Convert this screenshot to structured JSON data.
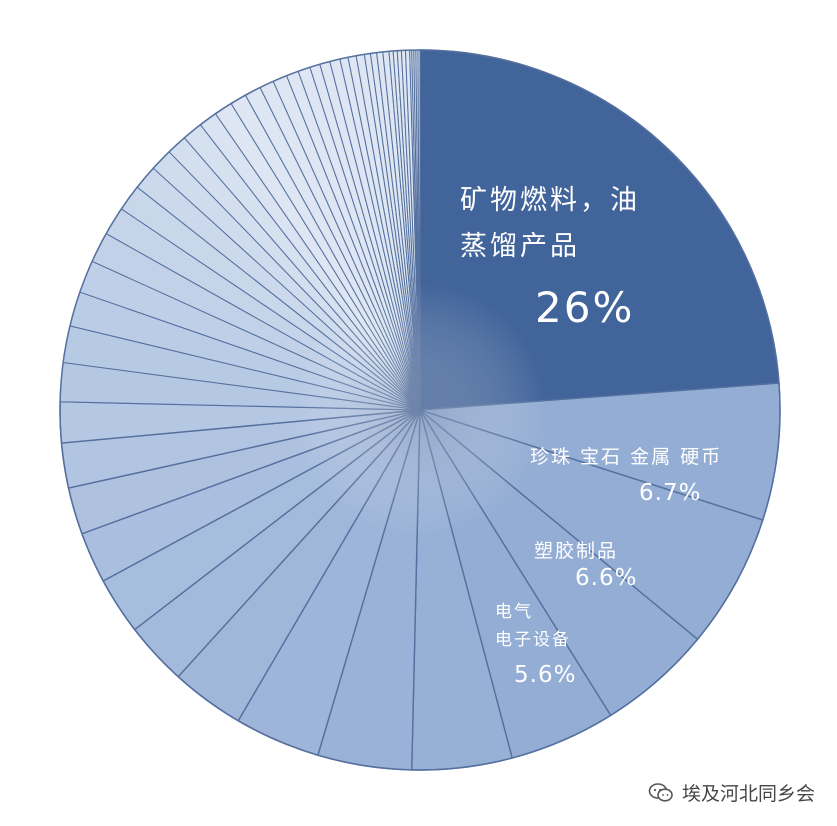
{
  "chart_data": {
    "type": "pie",
    "slices": [
      {
        "label": "矿物燃料，油蒸馏产品",
        "value": 26,
        "display": "26%"
      },
      {
        "label": "珍珠 宝石 金属 硬币",
        "value": 6.7,
        "display": "6.7%"
      },
      {
        "label": "塑胶制品",
        "value": 6.6,
        "display": "6.6%"
      },
      {
        "label": "电气电子设备",
        "value": 5.6,
        "display": "5.6%"
      },
      {
        "value": 5.2
      },
      {
        "value": 4.9
      },
      {
        "value": 4.6
      },
      {
        "value": 4.2
      },
      {
        "value": 3.6
      },
      {
        "value": 3.1
      },
      {
        "value": 2.8
      },
      {
        "value": 2.5
      },
      {
        "value": 2.3
      },
      {
        "value": 2.2
      },
      {
        "value": 2.0
      },
      {
        "value": 1.9
      },
      {
        "value": 1.8
      },
      {
        "value": 1.7
      },
      {
        "value": 1.6
      },
      {
        "value": 1.5
      },
      {
        "value": 1.4
      },
      {
        "value": 1.3
      },
      {
        "value": 1.2
      },
      {
        "value": 1.1
      },
      {
        "value": 1.0
      },
      {
        "value": 1.0
      },
      {
        "value": 0.9
      },
      {
        "value": 0.9
      },
      {
        "value": 0.8
      },
      {
        "value": 0.8
      },
      {
        "value": 0.7
      },
      {
        "value": 0.7
      },
      {
        "value": 0.6
      },
      {
        "value": 0.6
      },
      {
        "value": 0.5
      },
      {
        "value": 0.5
      },
      {
        "value": 0.5
      },
      {
        "value": 0.4
      },
      {
        "value": 0.4
      },
      {
        "value": 0.4
      },
      {
        "value": 0.3
      },
      {
        "value": 0.3
      },
      {
        "value": 0.3
      },
      {
        "value": 0.3
      },
      {
        "value": 0.2
      },
      {
        "value": 0.2
      },
      {
        "value": 0.2
      },
      {
        "value": 0.2
      },
      {
        "value": 0.2
      },
      {
        "value": 0.1
      },
      {
        "value": 0.1
      },
      {
        "value": 0.1
      },
      {
        "value": 0.1
      },
      {
        "value": 0.1
      }
    ],
    "colors": {
      "major": "#41649a",
      "large": "#94add4",
      "mid": "#b4c7e3",
      "small": "#dde6f2",
      "border": "#55709f"
    }
  },
  "labels": {
    "s0_line1": "矿物燃料，油",
    "s0_line2": "蒸馏产品",
    "s0_pct": "26%",
    "s1_name": "珍珠 宝石 金属 硬币",
    "s1_pct": "6.7%",
    "s2_name": "塑胶制品",
    "s2_pct": "6.6%",
    "s3_line1": "电气",
    "s3_line2": "电子设备",
    "s3_pct": "5.6%"
  },
  "watermark": {
    "text": "埃及河北同乡会",
    "icon": "wechat-icon"
  }
}
